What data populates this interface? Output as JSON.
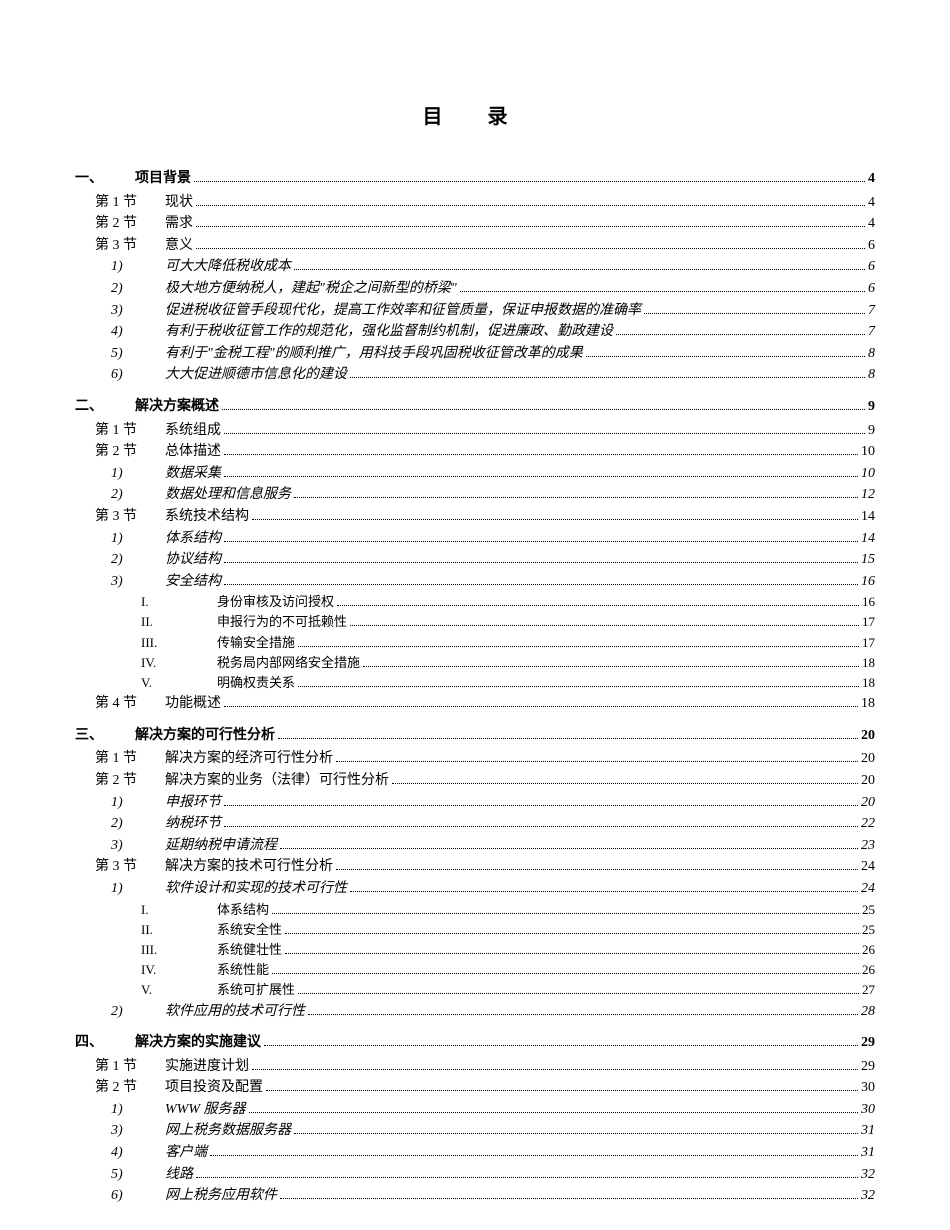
{
  "title": "目  录",
  "entries": [
    {
      "level": 1,
      "label": "一、",
      "text": "项目背景",
      "page": "4"
    },
    {
      "level": 2,
      "label": "第 1 节",
      "text": "现状",
      "page": "4"
    },
    {
      "level": 2,
      "label": "第 2 节",
      "text": "需求",
      "page": "4"
    },
    {
      "level": 2,
      "label": "第 3 节",
      "text": "意义",
      "page": "6"
    },
    {
      "level": 3,
      "label": "1)",
      "text": "可大大降低税收成本",
      "page": "6"
    },
    {
      "level": 3,
      "label": "2)",
      "text": "极大地方便纳税人，建起\"税企之间新型的桥梁\"",
      "page": "6"
    },
    {
      "level": 3,
      "label": "3)",
      "text": "促进税收征管手段现代化，提高工作效率和征管质量，保证申报数据的准确率",
      "page": "7"
    },
    {
      "level": 3,
      "label": "4)",
      "text": "有利于税收征管工作的规范化，强化监督制约机制，促进廉政、勤政建设",
      "page": "7"
    },
    {
      "level": 3,
      "label": "5)",
      "text": "有利于\"金税工程\"的顺利推广，用科技手段巩固税收征管改革的成果",
      "page": "8"
    },
    {
      "level": 3,
      "label": "6)",
      "text": "大大促进顺德市信息化的建设",
      "page": "8"
    },
    {
      "level": 1,
      "label": "二、",
      "text": "解决方案概述",
      "page": "9"
    },
    {
      "level": 2,
      "label": "第 1 节",
      "text": "系统组成",
      "page": "9"
    },
    {
      "level": 2,
      "label": "第 2 节",
      "text": "总体描述",
      "page": "10"
    },
    {
      "level": 3,
      "label": "1)",
      "text": "数据采集",
      "page": "10"
    },
    {
      "level": 3,
      "label": "2)",
      "text": "数据处理和信息服务",
      "page": "12"
    },
    {
      "level": 2,
      "label": "第 3 节",
      "text": "系统技术结构",
      "page": "14"
    },
    {
      "level": 3,
      "label": "1)",
      "text": "体系结构",
      "page": "14"
    },
    {
      "level": 3,
      "label": "2)",
      "text": "协议结构",
      "page": "15"
    },
    {
      "level": 3,
      "label": "3)",
      "text": "安全结构",
      "page": "16"
    },
    {
      "level": 4,
      "label": "I.",
      "text": "身份审核及访问授权",
      "page": "16"
    },
    {
      "level": 4,
      "label": "II.",
      "text": "申报行为的不可抵赖性",
      "page": "17"
    },
    {
      "level": 4,
      "label": "III.",
      "text": "传输安全措施",
      "page": "17"
    },
    {
      "level": 4,
      "label": "IV.",
      "text": "税务局内部网络安全措施",
      "page": "18"
    },
    {
      "level": 4,
      "label": "V.",
      "text": "明确权责关系",
      "page": "18"
    },
    {
      "level": 2,
      "label": "第 4 节",
      "text": "功能概述",
      "page": "18"
    },
    {
      "level": 1,
      "label": "三、",
      "text": "解决方案的可行性分析",
      "page": "20"
    },
    {
      "level": 2,
      "label": "第 1 节",
      "text": "解决方案的经济可行性分析",
      "page": "20"
    },
    {
      "level": 2,
      "label": "第 2 节",
      "text": "解决方案的业务（法律）可行性分析",
      "page": "20"
    },
    {
      "level": 3,
      "label": "1)",
      "text": "申报环节",
      "page": "20"
    },
    {
      "level": 3,
      "label": "2)",
      "text": "纳税环节",
      "page": "22"
    },
    {
      "level": 3,
      "label": "3)",
      "text": "延期纳税申请流程",
      "page": "23"
    },
    {
      "level": 2,
      "label": "第 3 节",
      "text": "解决方案的技术可行性分析",
      "page": "24"
    },
    {
      "level": 3,
      "label": "1)",
      "text": "软件设计和实现的技术可行性",
      "page": "24"
    },
    {
      "level": 4,
      "label": "I.",
      "text": "体系结构",
      "page": "25"
    },
    {
      "level": 4,
      "label": "II.",
      "text": "系统安全性",
      "page": "25"
    },
    {
      "level": 4,
      "label": "III.",
      "text": "系统健壮性",
      "page": "26"
    },
    {
      "level": 4,
      "label": "IV.",
      "text": "系统性能",
      "page": "26"
    },
    {
      "level": 4,
      "label": "V.",
      "text": "系统可扩展性",
      "page": "27"
    },
    {
      "level": 3,
      "label": "2)",
      "text": "软件应用的技术可行性",
      "page": "28"
    },
    {
      "level": 1,
      "label": "四、",
      "text": "解决方案的实施建议",
      "page": "29"
    },
    {
      "level": 2,
      "label": "第 1 节",
      "text": "实施进度计划",
      "page": "29"
    },
    {
      "level": 2,
      "label": "第 2 节",
      "text": "项目投资及配置",
      "page": "30"
    },
    {
      "level": 3,
      "label": "1)",
      "text": "WWW 服务器",
      "page": "30"
    },
    {
      "level": 3,
      "label": "3)",
      "text": "网上税务数据服务器",
      "page": "31"
    },
    {
      "level": 3,
      "label": "4)",
      "text": "客户端",
      "page": "31"
    },
    {
      "level": 3,
      "label": "5)",
      "text": "线路",
      "page": "32"
    },
    {
      "level": 3,
      "label": "6)",
      "text": "网上税务应用软件",
      "page": "32"
    }
  ]
}
